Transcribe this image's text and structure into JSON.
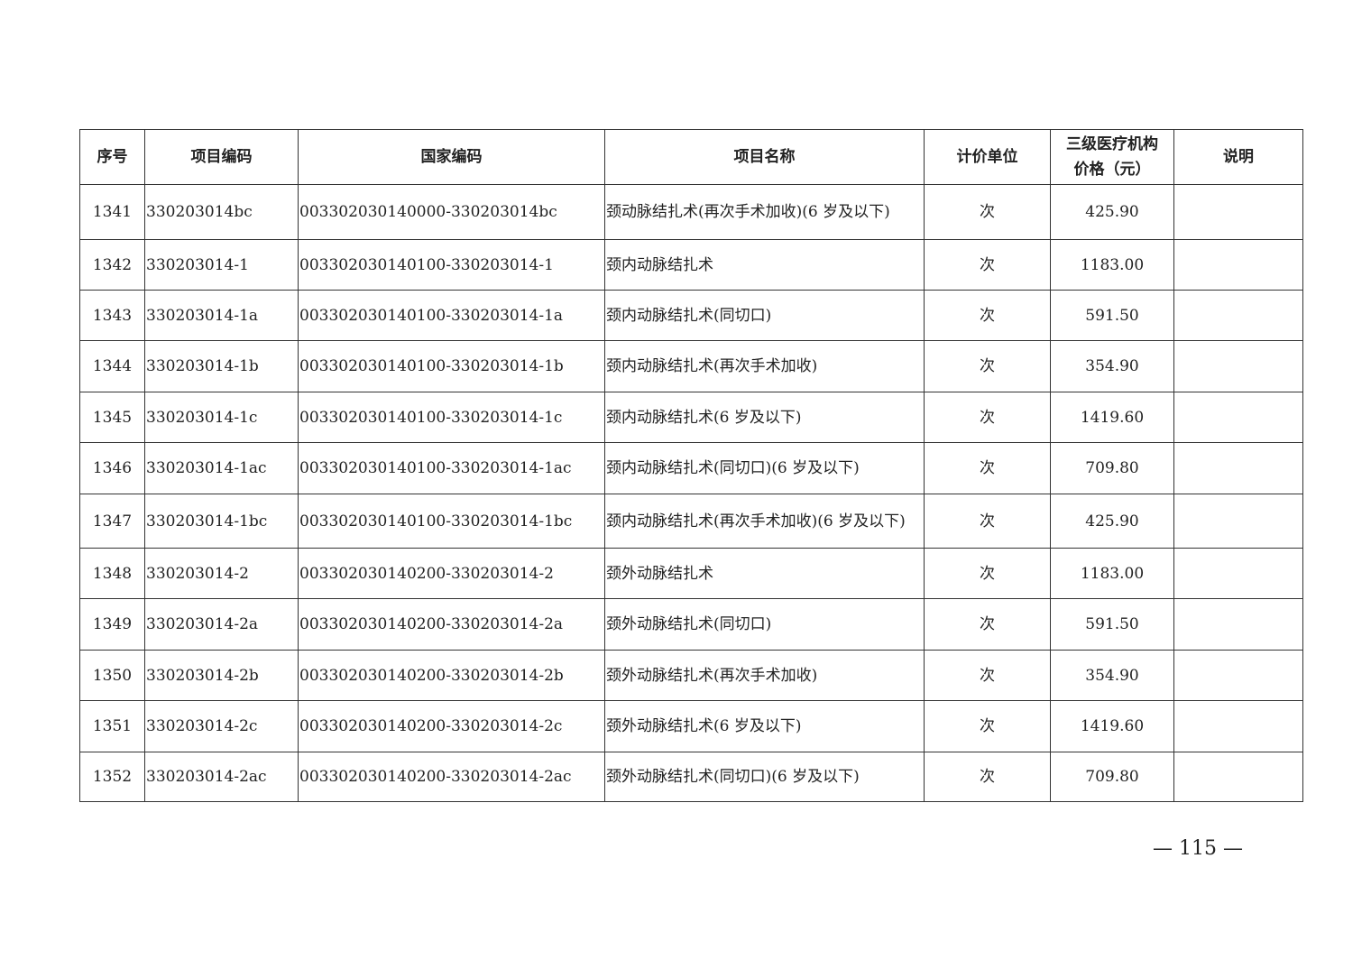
{
  "table": {
    "headers": [
      "序号",
      "项目编码",
      "国家编码",
      "项目名称",
      "计价单位",
      "三级医疗机构\n价格（元）",
      "说明"
    ],
    "header_price_line1": "三级医疗机构",
    "header_price_line2": "价格（元）",
    "rows": [
      [
        "1341",
        "330203014bc",
        "003302030140000-330203014bc",
        "颈动脉结扎术(再次手术加收)(6 岁及以下)",
        "次",
        "425.90",
        ""
      ],
      [
        "1342",
        "330203014-1",
        "003302030140100-330203014-1",
        "颈内动脉结扎术",
        "次",
        "1183.00",
        ""
      ],
      [
        "1343",
        "330203014-1a",
        "003302030140100-330203014-1a",
        "颈内动脉结扎术(同切口)",
        "次",
        "591.50",
        ""
      ],
      [
        "1344",
        "330203014-1b",
        "003302030140100-330203014-1b",
        "颈内动脉结扎术(再次手术加收)",
        "次",
        "354.90",
        ""
      ],
      [
        "1345",
        "330203014-1c",
        "003302030140100-330203014-1c",
        "颈内动脉结扎术(6 岁及以下)",
        "次",
        "1419.60",
        ""
      ],
      [
        "1346",
        "330203014-1ac",
        "003302030140100-330203014-1ac",
        "颈内动脉结扎术(同切口)(6 岁及以下)",
        "次",
        "709.80",
        ""
      ],
      [
        "1347",
        "330203014-1bc",
        "003302030140100-330203014-1bc",
        "颈内动脉结扎术(再次手术加收)(6 岁及以下)",
        "次",
        "425.90",
        ""
      ],
      [
        "1348",
        "330203014-2",
        "003302030140200-330203014-2",
        "颈外动脉结扎术",
        "次",
        "1183.00",
        ""
      ],
      [
        "1349",
        "330203014-2a",
        "003302030140200-330203014-2a",
        "颈外动脉结扎术(同切口)",
        "次",
        "591.50",
        ""
      ],
      [
        "1350",
        "330203014-2b",
        "003302030140200-330203014-2b",
        "颈外动脉结扎术(再次手术加收)",
        "次",
        "354.90",
        ""
      ],
      [
        "1351",
        "330203014-2c",
        "003302030140200-330203014-2c",
        "颈外动脉结扎术(6 岁及以下)",
        "次",
        "1419.60",
        ""
      ],
      [
        "1352",
        "330203014-2ac",
        "003302030140200-330203014-2ac",
        "颈外动脉结扎术(同切口)(6 岁及以下)",
        "次",
        "709.80",
        ""
      ]
    ]
  },
  "page_number": "— 115 —"
}
